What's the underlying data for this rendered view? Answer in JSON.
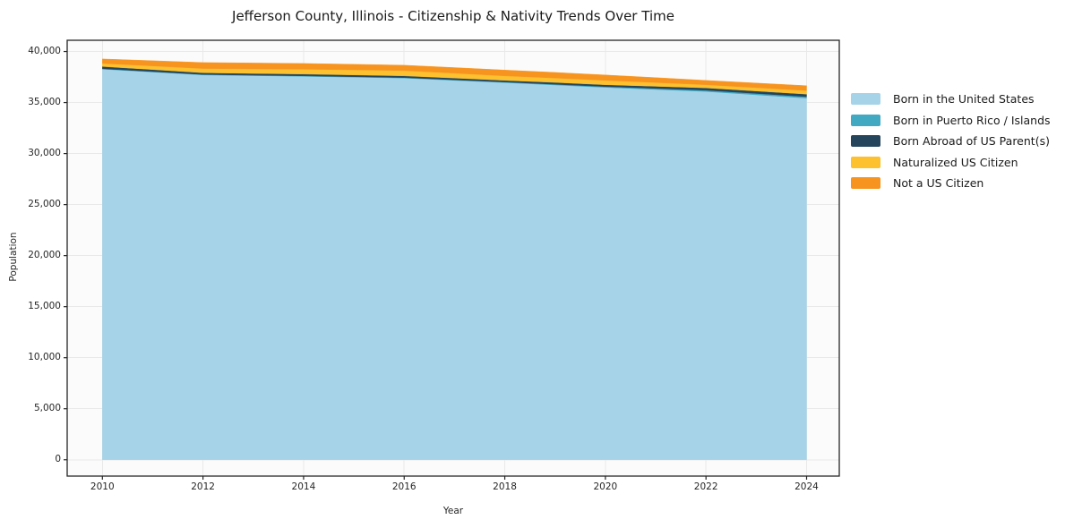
{
  "title": "Jefferson County, Illinois - Citizenship & Nativity Trends Over Time",
  "axes": {
    "x": {
      "label": "Year",
      "ticks": [
        2010,
        2012,
        2014,
        2016,
        2018,
        2020,
        2022,
        2024
      ]
    },
    "y": {
      "label": "Population",
      "tick_values": [
        0,
        5000,
        10000,
        15000,
        20000,
        25000,
        30000,
        35000,
        40000
      ],
      "tick_labels": [
        "0",
        "5,000",
        "10,000",
        "15,000",
        "20,000",
        "25,000",
        "30,000",
        "35,000",
        "40,000"
      ]
    }
  },
  "chart_data": {
    "type": "area",
    "stacked": true,
    "title": "Jefferson County, Illinois - Citizenship & Nativity Trends Over Time",
    "xlabel": "Year",
    "ylabel": "Population",
    "x": [
      2010,
      2011,
      2012,
      2013,
      2014,
      2015,
      2016,
      2017,
      2018,
      2019,
      2020,
      2021,
      2022,
      2023,
      2024
    ],
    "series": [
      {
        "name": "Born in the United States",
        "color": "#a6d3e8",
        "values": [
          38270,
          37985,
          37700,
          37630,
          37565,
          37480,
          37390,
          37170,
          36950,
          36715,
          36480,
          36280,
          36080,
          35755,
          35430
        ]
      },
      {
        "name": "Born in Puerto Rico / Islands",
        "color": "#41a9c2",
        "values": [
          40,
          42,
          45,
          45,
          45,
          48,
          50,
          55,
          60,
          70,
          80,
          100,
          120,
          130,
          140
        ]
      },
      {
        "name": "Born Abroad of US Parent(s)",
        "color": "#24455c",
        "values": [
          220,
          200,
          170,
          175,
          175,
          172,
          170,
          168,
          160,
          180,
          180,
          210,
          230,
          240,
          250
        ]
      },
      {
        "name": "Naturalized US Citizen",
        "color": "#fdc02f",
        "values": [
          300,
          357,
          415,
          448,
          480,
          500,
          520,
          480,
          440,
          435,
          430,
          370,
          310,
          330,
          350
        ]
      },
      {
        "name": "Not a US Citizen",
        "color": "#f7941f",
        "values": [
          440,
          515,
          590,
          578,
          565,
          548,
          530,
          550,
          570,
          550,
          530,
          480,
          430,
          455,
          480
        ]
      }
    ],
    "xlim": [
      2009.3,
      2024.65
    ],
    "ylim": [
      -1600,
      41100
    ],
    "grid": true,
    "legend_position": "right-outside"
  },
  "colors": {
    "page_background": "#ffffff",
    "plot_background": "#fbfbfb",
    "grid": "#e9e9e9",
    "spine": "#262626",
    "text": "#262626"
  }
}
